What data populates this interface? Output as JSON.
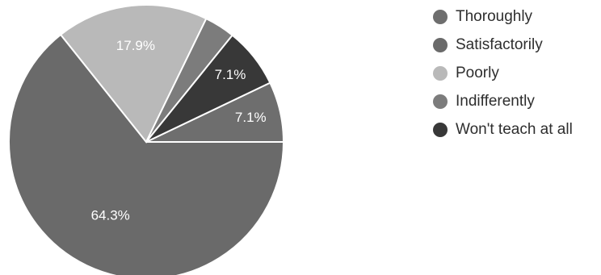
{
  "chart_data": {
    "type": "pie",
    "categories": [
      "Thoroughly",
      "Satisfactorily",
      "Poorly",
      "Indifferently",
      "Won't teach at all"
    ],
    "values": [
      7.1,
      64.3,
      17.9,
      3.6,
      7.1
    ],
    "data_labels": [
      "7.1%",
      "64.3%",
      "17.9%",
      "",
      "7.1%"
    ],
    "colors": [
      "#6e6e6e",
      "#6a6a6a",
      "#b9b9b9",
      "#7c7c7c",
      "#383838"
    ],
    "legend_position": "right",
    "title": ""
  }
}
